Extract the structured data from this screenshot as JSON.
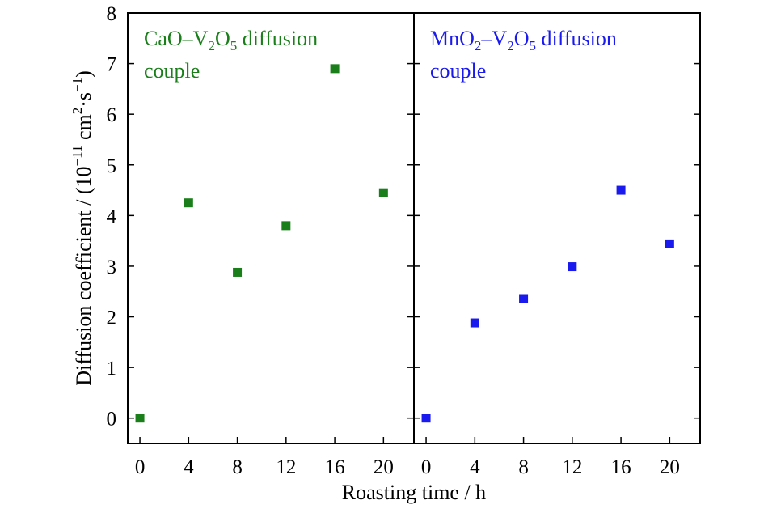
{
  "chart_data": [
    {
      "type": "scatter",
      "panel_label": [
        "CaO–V",
        "2",
        "O",
        "5",
        " diffusion",
        "couple"
      ],
      "series": [
        {
          "color": "#1a7f1a",
          "marker": "square",
          "x": [
            0,
            4,
            8,
            12,
            16,
            20
          ],
          "y": [
            0,
            4.25,
            2.88,
            3.8,
            6.9,
            4.45
          ]
        }
      ],
      "xlim": [
        -1,
        22.5
      ],
      "ylim": [
        -0.5,
        8
      ],
      "xticks": [
        "0",
        "4",
        "8",
        "12",
        "16",
        "20"
      ],
      "xtick_values": [
        0,
        4,
        8,
        12,
        16,
        20
      ],
      "yticks": [
        "0",
        "1",
        "2",
        "3",
        "4",
        "5",
        "6",
        "7",
        "8"
      ],
      "ytick_values": [
        0,
        1,
        2,
        3,
        4,
        5,
        6,
        7,
        8
      ]
    },
    {
      "type": "scatter",
      "panel_label": [
        "MnO",
        "2",
        "–V",
        "2",
        "O",
        "5",
        " diffusion",
        "couple"
      ],
      "series": [
        {
          "color": "#1a1aee",
          "marker": "square",
          "x": [
            0,
            4,
            8,
            12,
            16,
            20
          ],
          "y": [
            0,
            1.88,
            2.36,
            2.99,
            4.5,
            3.44
          ]
        }
      ],
      "xlim": [
        -1,
        22.5
      ],
      "ylim": [
        -0.5,
        8
      ],
      "xticks": [
        "0",
        "4",
        "8",
        "12",
        "16",
        "20"
      ],
      "xtick_values": [
        0,
        4,
        8,
        12,
        16,
        20
      ]
    }
  ],
  "axes": {
    "xlabel": "Roasting time / h",
    "ylabel_parts": [
      "Diffusion coefficient / (10",
      "−11",
      " cm",
      "2",
      "·s",
      "−1",
      ")"
    ]
  },
  "colors": {
    "green": "#1a7f1a",
    "blue": "#1a1aee",
    "axis": "#000000"
  }
}
